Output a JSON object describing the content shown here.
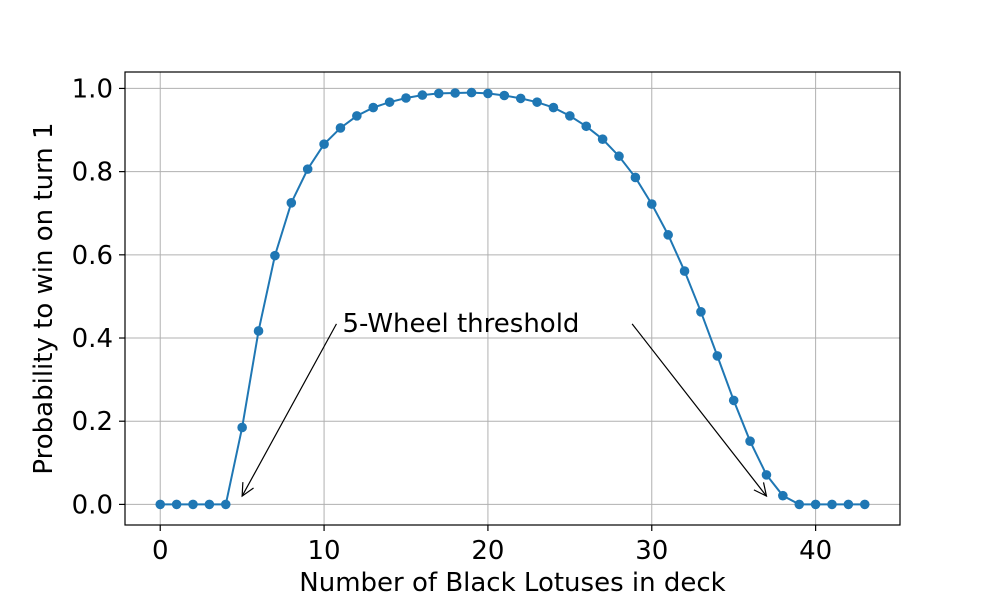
{
  "chart_data": {
    "type": "line",
    "title": "",
    "xlabel": "Number of Black Lotuses in deck",
    "ylabel": "Probability to win on turn 1",
    "xlim": [
      -2.15,
      45.15
    ],
    "ylim": [
      -0.0495,
      1.0395
    ],
    "xticks": [
      0,
      10,
      20,
      30,
      40
    ],
    "yticks": [
      0.0,
      0.2,
      0.4,
      0.6,
      0.8,
      1.0
    ],
    "xtick_labels": [
      "0",
      "10",
      "20",
      "30",
      "40"
    ],
    "ytick_labels": [
      "0.0",
      "0.2",
      "0.4",
      "0.6",
      "0.8",
      "1.0"
    ],
    "grid": true,
    "legend": "none",
    "colors": {
      "line": "#1f77b4",
      "grid": "#b0b0b0",
      "annotation": "#000000"
    },
    "series": [
      {
        "x": [
          0,
          1,
          2,
          3,
          4,
          5,
          6,
          7,
          8,
          9,
          10,
          11,
          12,
          13,
          14,
          15,
          16,
          17,
          18,
          19,
          20,
          21,
          22,
          23,
          24,
          25,
          26,
          27,
          28,
          29,
          30,
          31,
          32,
          33,
          34,
          35,
          36,
          37,
          38,
          39,
          40,
          41,
          42,
          43
        ],
        "y": [
          0.0,
          0.0,
          0.0,
          0.0,
          0.0,
          0.185,
          0.417,
          0.598,
          0.725,
          0.806,
          0.866,
          0.905,
          0.934,
          0.954,
          0.967,
          0.977,
          0.984,
          0.988,
          0.989,
          0.99,
          0.988,
          0.983,
          0.976,
          0.967,
          0.954,
          0.934,
          0.909,
          0.878,
          0.837,
          0.786,
          0.722,
          0.648,
          0.561,
          0.463,
          0.357,
          0.25,
          0.152,
          0.071,
          0.021,
          0.0,
          0.0,
          0.0,
          0.0,
          0.0
        ]
      }
    ],
    "annotation": {
      "text": "5-Wheel threshold",
      "text_anchor": [
        11,
        0.41
      ],
      "arrows_to": [
        [
          5,
          0.02
        ],
        [
          37,
          0.02
        ]
      ]
    }
  }
}
